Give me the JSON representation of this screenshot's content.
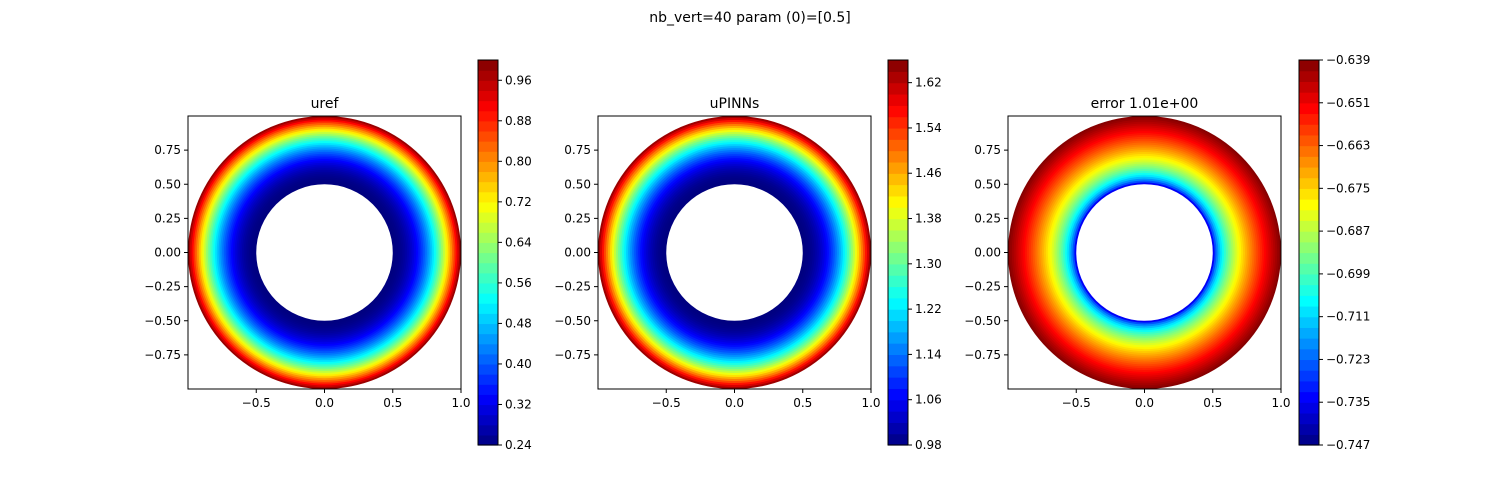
{
  "figure": {
    "suptitle": "nb_vert=40 param (0)=[0.5]"
  },
  "chart_data": [
    {
      "type": "contour",
      "title": "uref",
      "xlim": [
        -1.0,
        1.0
      ],
      "ylim": [
        -1.0,
        1.0
      ],
      "x_ticks": [
        "−0.5",
        "0.0",
        "0.5",
        "1.0"
      ],
      "x_tick_values": [
        -0.5,
        0.0,
        0.5,
        1.0
      ],
      "y_ticks": [
        "0.75",
        "0.50",
        "0.25",
        "0.00",
        "−0.25",
        "−0.50",
        "−0.75"
      ],
      "y_tick_values": [
        0.75,
        0.5,
        0.25,
        0.0,
        -0.25,
        -0.5,
        -0.75
      ],
      "domain": {
        "shape": "annulus",
        "inner_radius": 0.5,
        "outer_radius": 1.0
      },
      "colormap": "jet",
      "value_range": [
        0.24,
        1.0
      ],
      "num_levels": 38,
      "field_profile": "quadratic",
      "colorbar_ticks": [
        "0.24",
        "0.32",
        "0.40",
        "0.48",
        "0.56",
        "0.64",
        "0.72",
        "0.80",
        "0.88",
        "0.96"
      ],
      "colorbar_tick_values": [
        0.24,
        0.32,
        0.4,
        0.48,
        0.56,
        0.64,
        0.72,
        0.8,
        0.88,
        0.96
      ]
    },
    {
      "type": "contour",
      "title": "uPINNs",
      "xlim": [
        -1.0,
        1.0
      ],
      "ylim": [
        -1.0,
        1.0
      ],
      "x_ticks": [
        "−0.5",
        "0.0",
        "0.5",
        "1.0"
      ],
      "x_tick_values": [
        -0.5,
        0.0,
        0.5,
        1.0
      ],
      "y_ticks": [
        "0.75",
        "0.50",
        "0.25",
        "0.00",
        "−0.25",
        "−0.50",
        "−0.75"
      ],
      "y_tick_values": [
        0.75,
        0.5,
        0.25,
        0.0,
        -0.25,
        -0.5,
        -0.75
      ],
      "domain": {
        "shape": "annulus",
        "inner_radius": 0.5,
        "outer_radius": 1.0
      },
      "colormap": "jet",
      "value_range": [
        0.98,
        1.66
      ],
      "num_levels": 34,
      "field_profile": "quadratic",
      "colorbar_ticks": [
        "0.98",
        "1.06",
        "1.14",
        "1.22",
        "1.30",
        "1.38",
        "1.46",
        "1.54",
        "1.62"
      ],
      "colorbar_tick_values": [
        0.98,
        1.06,
        1.14,
        1.22,
        1.3,
        1.38,
        1.46,
        1.54,
        1.62
      ]
    },
    {
      "type": "contour",
      "title": "error 1.01e+00",
      "xlim": [
        -1.0,
        1.0
      ],
      "ylim": [
        -1.0,
        1.0
      ],
      "x_ticks": [
        "−0.5",
        "0.0",
        "0.5",
        "1.0"
      ],
      "x_tick_values": [
        -0.5,
        0.0,
        0.5,
        1.0
      ],
      "y_ticks": [
        "0.75",
        "0.50",
        "0.25",
        "0.00",
        "−0.25",
        "−0.50",
        "−0.75"
      ],
      "y_tick_values": [
        0.75,
        0.5,
        0.25,
        0.0,
        -0.25,
        -0.5,
        -0.75
      ],
      "domain": {
        "shape": "annulus",
        "inner_radius": 0.5,
        "outer_radius": 1.0
      },
      "colormap": "jet",
      "value_range": [
        -0.747,
        -0.639
      ],
      "num_levels": 36,
      "field_profile": "sqrt",
      "colorbar_ticks": [
        "−0.747",
        "−0.735",
        "−0.723",
        "−0.711",
        "−0.699",
        "−0.687",
        "−0.675",
        "−0.663",
        "−0.651",
        "−0.639"
      ],
      "colorbar_tick_values": [
        -0.747,
        -0.735,
        -0.723,
        -0.711,
        -0.699,
        -0.687,
        -0.675,
        -0.663,
        -0.651,
        -0.639
      ]
    }
  ]
}
